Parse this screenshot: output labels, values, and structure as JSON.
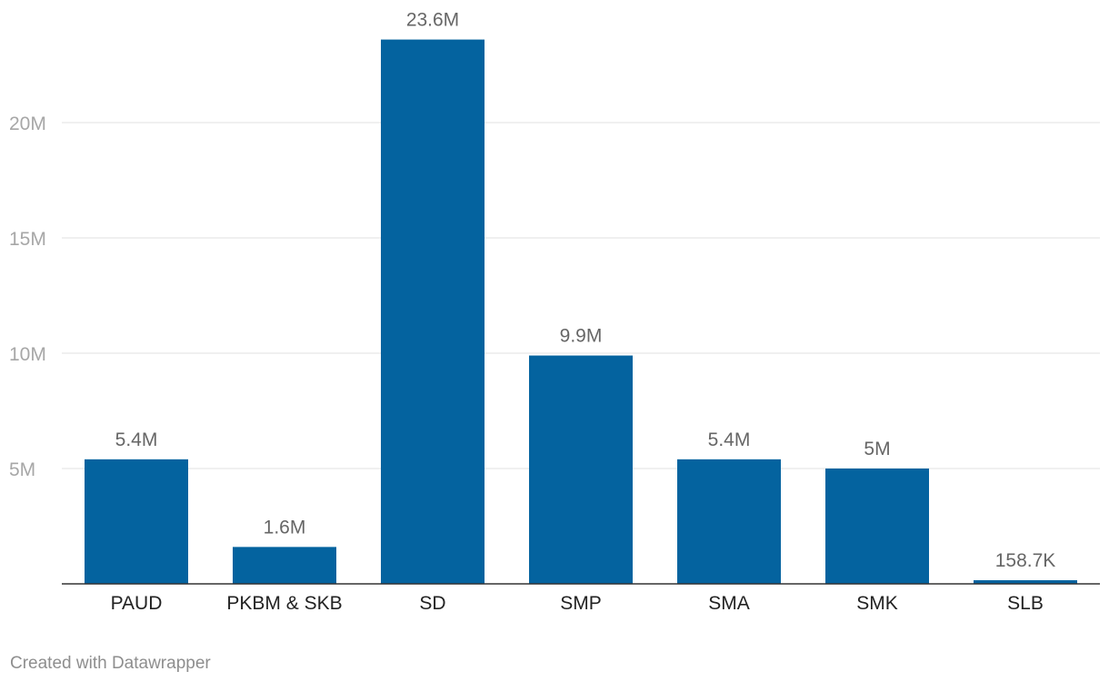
{
  "footer": {
    "credit": "Created with Datawrapper"
  },
  "colors": {
    "bar": "#04639f",
    "grid": "#e2e2e2",
    "baseline": "#333333",
    "tick_text": "#a7a7a7",
    "category_text": "#222222",
    "value_text": "#666666",
    "footer_text": "#8e8e8e"
  },
  "chart_data": {
    "type": "bar",
    "title": "",
    "xlabel": "",
    "ylabel": "",
    "categories": [
      "PAUD",
      "PKBM & SKB",
      "SD",
      "SMP",
      "SMA",
      "SMK",
      "SLB"
    ],
    "values": [
      5400000,
      1600000,
      23600000,
      9900000,
      5400000,
      5000000,
      158700
    ],
    "value_labels": [
      "5.4M",
      "1.6M",
      "23.6M",
      "9.9M",
      "5.4M",
      "5M",
      "158.7K"
    ],
    "y_ticks": [
      5000000,
      10000000,
      15000000,
      20000000
    ],
    "y_tick_labels": [
      "5M",
      "10M",
      "15M",
      "20M"
    ],
    "ylim": [
      0,
      25000000
    ],
    "grid": true,
    "legend": "none"
  }
}
